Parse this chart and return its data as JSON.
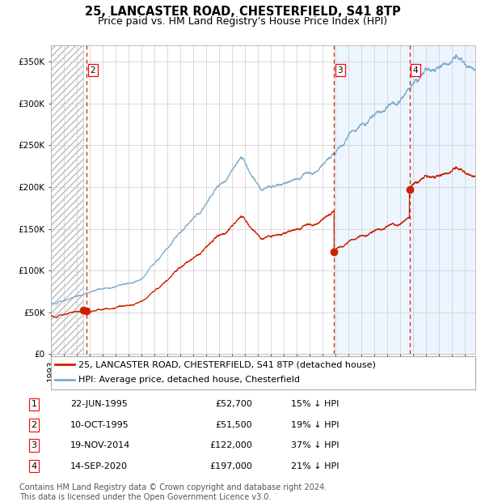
{
  "title": "25, LANCASTER ROAD, CHESTERFIELD, S41 8TP",
  "subtitle": "Price paid vs. HM Land Registry's House Price Index (HPI)",
  "ylim": [
    0,
    370000
  ],
  "xlim_start": 1993.0,
  "xlim_end": 2025.8,
  "yticks": [
    0,
    50000,
    100000,
    150000,
    200000,
    250000,
    300000,
    350000
  ],
  "ytick_labels": [
    "£0",
    "£50K",
    "£100K",
    "£150K",
    "£200K",
    "£250K",
    "£300K",
    "£350K"
  ],
  "hpi_color": "#7aabcf",
  "price_color": "#cc2200",
  "bg_shade_color": "#ddeeff",
  "grid_color": "#cccccc",
  "sale_dates": [
    1995.47,
    1995.78,
    2014.89,
    2020.71
  ],
  "sale_prices": [
    52700,
    51500,
    122000,
    197000
  ],
  "sale_labels": [
    "1",
    "2",
    "3",
    "4"
  ],
  "vline_dates": [
    1995.78,
    2014.89,
    2020.71
  ],
  "vline_labels": [
    "2",
    "3",
    "4"
  ],
  "legend_price_label": "25, LANCASTER ROAD, CHESTERFIELD, S41 8TP (detached house)",
  "legend_hpi_label": "HPI: Average price, detached house, Chesterfield",
  "table_rows": [
    [
      "1",
      "22-JUN-1995",
      "£52,700",
      "15% ↓ HPI"
    ],
    [
      "2",
      "10-OCT-1995",
      "£51,500",
      "19% ↓ HPI"
    ],
    [
      "3",
      "19-NOV-2014",
      "£122,000",
      "37% ↓ HPI"
    ],
    [
      "4",
      "14-SEP-2020",
      "£197,000",
      "21% ↓ HPI"
    ]
  ],
  "footnote": "Contains HM Land Registry data © Crown copyright and database right 2024.\nThis data is licensed under the Open Government Licence v3.0.",
  "title_fontsize": 10.5,
  "subtitle_fontsize": 9,
  "tick_fontsize": 7.5,
  "legend_fontsize": 8,
  "table_fontsize": 8,
  "footnote_fontsize": 7
}
